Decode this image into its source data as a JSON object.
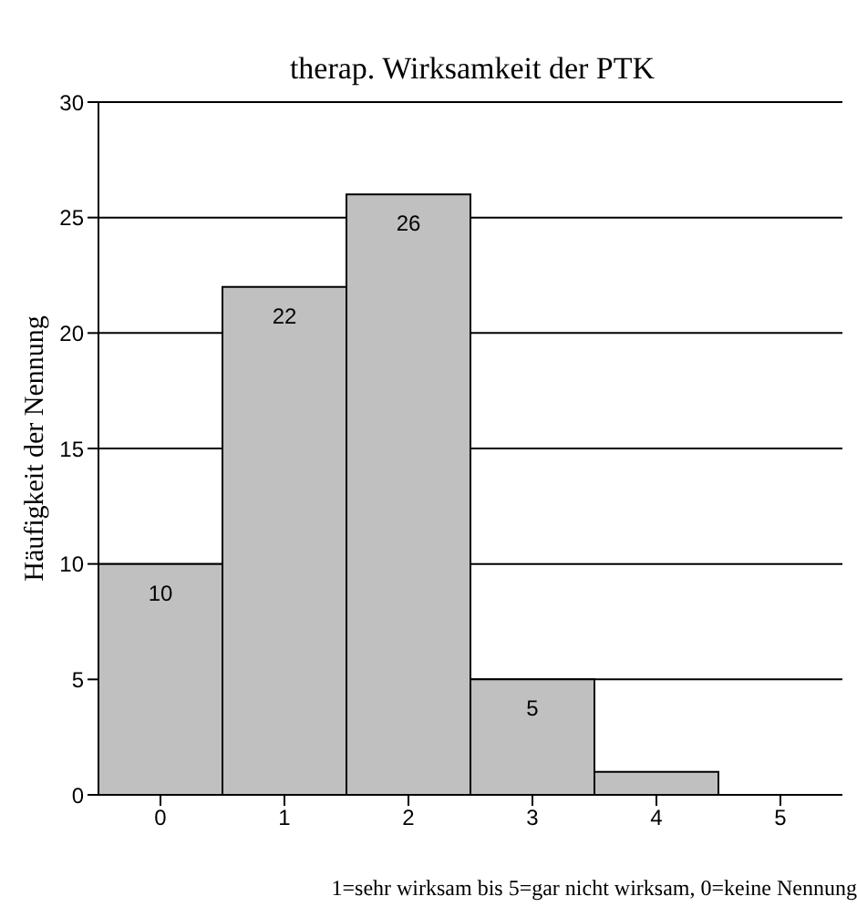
{
  "chart_data": {
    "type": "bar",
    "title": "therap. Wirksamkeit der PTK",
    "ylabel": "Häufigkeit der Nennung",
    "categories": [
      "0",
      "1",
      "2",
      "3",
      "4",
      "5"
    ],
    "values": [
      10,
      22,
      26,
      5,
      1,
      0
    ],
    "value_labels": [
      "10",
      "22",
      "26",
      "5",
      null,
      null
    ],
    "color": "#c0c0c0",
    "ylim": [
      0,
      30
    ],
    "yticks": [
      0,
      5,
      10,
      15,
      20,
      25,
      30
    ],
    "grid": "y",
    "annotations": [
      "1=sehr wirksam bis 5=gar nicht wirksam, 0=keine Nennung"
    ]
  }
}
